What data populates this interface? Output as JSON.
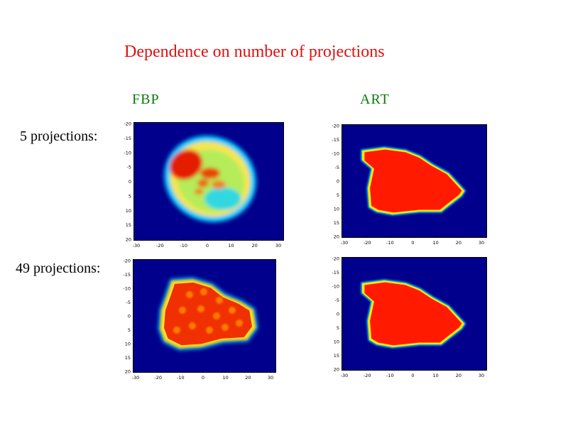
{
  "slide": {
    "title": "Dependence on number of projections",
    "columns": [
      "FBP",
      "ART"
    ],
    "rows": [
      "5 projections:",
      "49 projections:"
    ]
  },
  "colors": {
    "title": "#e01010",
    "column_header": "#0a7a0a",
    "background_field": "#00008c",
    "object_high": "#ff1a00"
  },
  "axes": {
    "x_ticks": [
      "-30",
      "-20",
      "-10",
      "0",
      "10",
      "20",
      "30"
    ],
    "y_ticks": [
      "-20",
      "-15",
      "-10",
      "-5",
      "0",
      "5",
      "10",
      "15",
      "20"
    ]
  },
  "panels": [
    {
      "id": "fbp-5",
      "method": "FBP",
      "projections": 5,
      "appearance": "ring-artifact"
    },
    {
      "id": "art-5",
      "method": "ART",
      "projections": 5,
      "appearance": "solid"
    },
    {
      "id": "fbp-49",
      "method": "FBP",
      "projections": 49,
      "appearance": "solid-textured"
    },
    {
      "id": "art-49",
      "method": "ART",
      "projections": 49,
      "appearance": "solid"
    }
  ]
}
